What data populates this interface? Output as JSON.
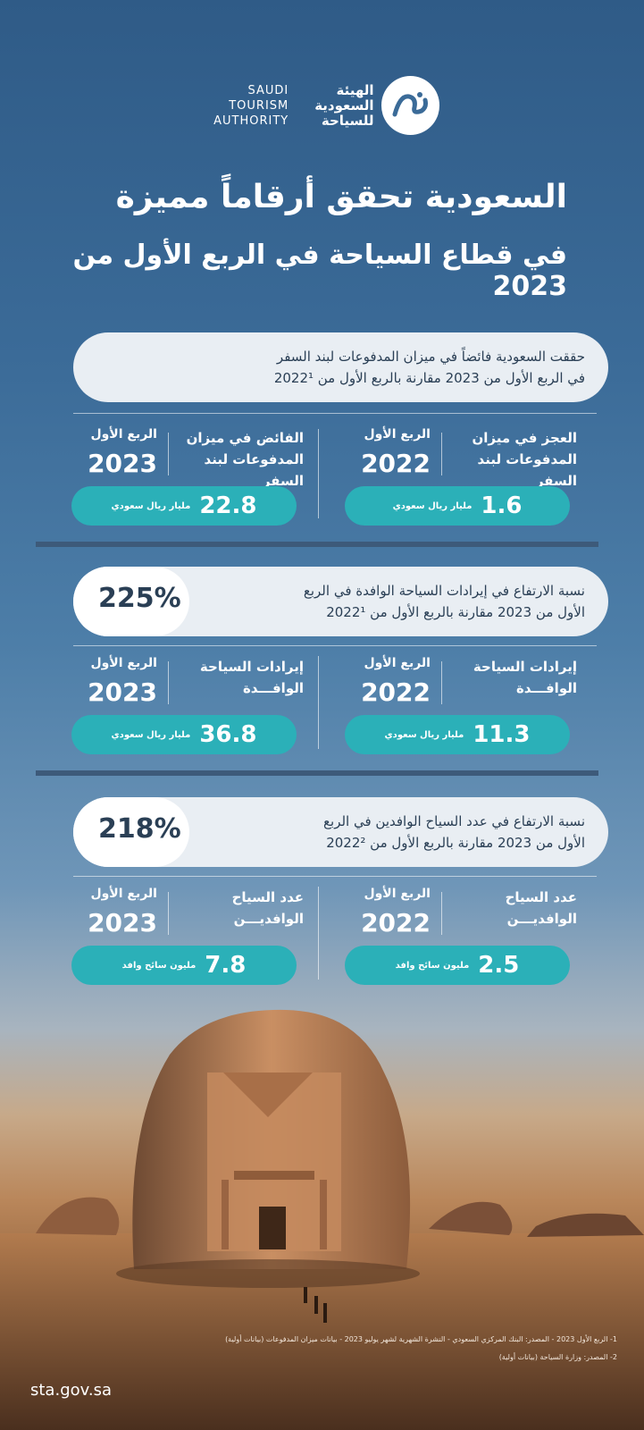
{
  "logo": {
    "en_lines": [
      "SAUDI",
      "TOURISM",
      "AUTHORITY"
    ],
    "ar_lines": [
      "الهيئة",
      "السعودية",
      "للسياحة"
    ]
  },
  "title": {
    "line1": "السعودية تحقق أرقاماً مميزة",
    "line2": "في قطاع السياحة في الربع الأول من 2023"
  },
  "section1": {
    "intro_line1": "حققت السعودية فائضاً في ميزان المدفوعات لبند السفر",
    "intro_line2": "في الربع الأول من 2023 مقارنة بالربع الأول من 2022¹",
    "right": {
      "label1": "العجز في ميزان",
      "label2": "المدفوعات لبند السفر",
      "quarter": "الربع الأول",
      "year": "2022",
      "value": "1.6",
      "unit": "مليار ريال سعودي"
    },
    "left": {
      "label1": "الفائض في ميزان",
      "label2": "المدفوعات لبند السفر",
      "quarter": "الربع الأول",
      "year": "2023",
      "value": "22.8",
      "unit": "مليار ريال سعودي"
    }
  },
  "section2": {
    "percent": "225%",
    "intro_line1": "نسبة الارتفاع في إيرادات السياحة الوافدة في الربع",
    "intro_line2": "الأول من 2023 مقارنة بالربع الأول من 2022¹",
    "right": {
      "label1": "إيرادات السياحة",
      "label2": "الوافـــدة",
      "quarter": "الربع الأول",
      "year": "2022",
      "value": "11.3",
      "unit": "مليار ريال سعودي"
    },
    "left": {
      "label1": "إيرادات السياحة",
      "label2": "الوافـــدة",
      "quarter": "الربع الأول",
      "year": "2023",
      "value": "36.8",
      "unit": "مليار ريال سعودي"
    }
  },
  "section3": {
    "percent": "218%",
    "intro_line1": "نسبة الارتفاع في عدد السياح الوافدين في الربع",
    "intro_line2": "الأول من 2023 مقارنة بالربع الأول من 2022²",
    "right": {
      "label1": "عدد السياح",
      "label2": "الوافديـــن",
      "quarter": "الربع الأول",
      "year": "2022",
      "value": "2.5",
      "unit": "مليون سائح وافد"
    },
    "left": {
      "label1": "عدد السياح",
      "label2": "الوافديـــن",
      "quarter": "الربع الأول",
      "year": "2023",
      "value": "7.8",
      "unit": "مليون سائح وافد"
    }
  },
  "footnotes": {
    "note1": "1- الربع الأول 2023 - المصدر: البنك المركزي السعودي - النشرة الشهرية لشهر يوليو 2023 - بيانات ميزان المدفوعات (بيانات أولية)",
    "note2": "2- المصدر: وزارة السياحة (بيانات أولية)"
  },
  "website": "sta.gov.sa",
  "colors": {
    "accent_teal": "#2bb0b8",
    "pill_bg": "#e9eef3",
    "text_dark": "#2a3f55",
    "divider": "#3d5a7a"
  }
}
